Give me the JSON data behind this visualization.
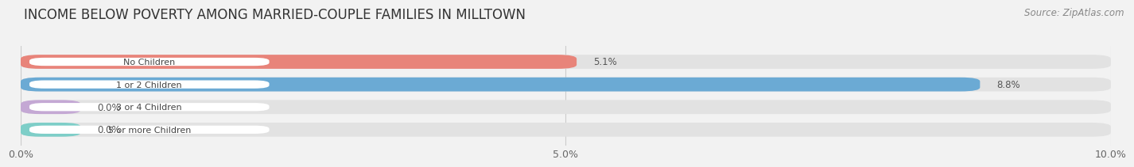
{
  "title": "INCOME BELOW POVERTY AMONG MARRIED-COUPLE FAMILIES IN MILLTOWN",
  "source": "Source: ZipAtlas.com",
  "categories": [
    "No Children",
    "1 or 2 Children",
    "3 or 4 Children",
    "5 or more Children"
  ],
  "values": [
    5.1,
    8.8,
    0.0,
    0.0
  ],
  "bar_colors": [
    "#E8847A",
    "#6BAAD4",
    "#C4A8D4",
    "#7ECEC8"
  ],
  "xlim": [
    0,
    10.0
  ],
  "xticks": [
    0.0,
    5.0,
    10.0
  ],
  "xticklabels": [
    "0.0%",
    "5.0%",
    "10.0%"
  ],
  "value_labels": [
    "5.1%",
    "8.8%",
    "0.0%",
    "0.0%"
  ],
  "title_fontsize": 12,
  "source_fontsize": 8.5,
  "background_color": "#f2f2f2",
  "bar_background": "#e2e2e2",
  "bar_height": 0.62,
  "label_bg_color": "#ffffff",
  "label_text_color": "#444444"
}
